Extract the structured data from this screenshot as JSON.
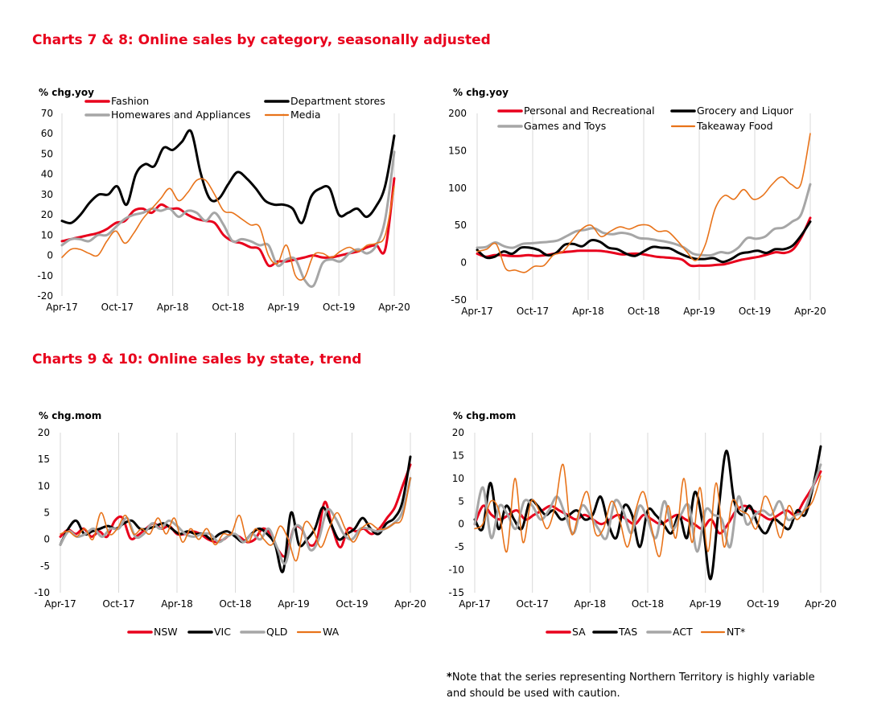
{
  "titles": {
    "top": "Charts 7 & 8: Online sales by category, seasonally adjusted",
    "bottom": "Charts 9 & 10: Online sales by state, trend"
  },
  "footnote": {
    "star": "*",
    "text": "Note that the series representing Northern Territory is highly variable and should be used with caution."
  },
  "chart_data": [
    {
      "id": "chart7",
      "type": "line",
      "ylabel": "% chg.yoy",
      "ylim": [
        -20,
        70
      ],
      "ystep": 10,
      "x_ticks": [
        "Apr-17",
        "Oct-17",
        "Apr-18",
        "Oct-18",
        "Apr-19",
        "Oct-19",
        "Apr-20"
      ],
      "x_range": [
        "Apr-17",
        "Apr-20"
      ],
      "grid": "vertical",
      "legend": "top",
      "series": [
        {
          "name": "Fashion",
          "color": "#e8001c",
          "width": 3,
          "values": [
            7,
            8,
            9,
            10,
            11,
            13,
            16,
            17,
            22,
            23,
            21,
            25,
            23,
            23,
            20,
            18,
            17,
            16,
            10,
            7,
            6,
            4,
            3,
            -5,
            -3,
            -3,
            -2,
            -1,
            0,
            -1,
            -1,
            0,
            1,
            2,
            4,
            5,
            3,
            38
          ]
        },
        {
          "name": "Department stores",
          "color": "#000000",
          "width": 3,
          "values": [
            17,
            16,
            20,
            26,
            30,
            30,
            34,
            25,
            40,
            45,
            44,
            53,
            52,
            56,
            61,
            41,
            28,
            28,
            35,
            41,
            38,
            33,
            27,
            25,
            25,
            23,
            16,
            29,
            33,
            33,
            20,
            21,
            23,
            19,
            24,
            34,
            59
          ]
        },
        {
          "name": "Homewares and Appliances",
          "color": "#a6a6a6",
          "width": 3,
          "values": [
            5,
            8,
            8,
            7,
            10,
            10,
            14,
            18,
            20,
            21,
            23,
            22,
            23,
            19,
            22,
            21,
            17,
            21,
            15,
            7,
            8,
            7,
            5,
            5,
            -5,
            -2,
            -2,
            -12,
            -15,
            -4,
            -2,
            -3,
            1,
            3,
            1,
            5,
            18,
            51
          ]
        },
        {
          "name": "Media",
          "color": "#e8731a",
          "width": 1.6,
          "values": [
            -1,
            3,
            3,
            1,
            0,
            7,
            12,
            6,
            11,
            18,
            23,
            28,
            33,
            27,
            31,
            37,
            37,
            30,
            22,
            21,
            18,
            15,
            14,
            0,
            -4,
            5,
            -10,
            -11,
            0,
            1,
            -1,
            2,
            4,
            2,
            5,
            6,
            10,
            34
          ]
        }
      ]
    },
    {
      "id": "chart8",
      "type": "line",
      "ylabel": "% chg.yoy",
      "ylim": [
        -50,
        200
      ],
      "ystep": 50,
      "x_ticks": [
        "Apr-17",
        "Oct-17",
        "Apr-18",
        "Oct-18",
        "Apr-19",
        "Oct-19",
        "Apr-20"
      ],
      "x_range": [
        "Apr-17",
        "Apr-20"
      ],
      "grid": "vertical",
      "legend": "top",
      "series": [
        {
          "name": "Personal and Recreational",
          "color": "#e8001c",
          "width": 3,
          "values": [
            12,
            8,
            10,
            10,
            9,
            9,
            10,
            9,
            10,
            12,
            14,
            15,
            16,
            16,
            16,
            15,
            13,
            11,
            12,
            12,
            10,
            8,
            7,
            6,
            4,
            -4,
            -4,
            -4,
            -3,
            -2,
            1,
            4,
            6,
            8,
            11,
            14,
            13,
            18,
            35,
            60
          ]
        },
        {
          "name": "Grocery and Liquor",
          "color": "#000000",
          "width": 3,
          "values": [
            17,
            7,
            8,
            15,
            12,
            20,
            20,
            17,
            10,
            13,
            24,
            25,
            22,
            30,
            28,
            20,
            18,
            12,
            9,
            15,
            21,
            20,
            19,
            13,
            8,
            5,
            5,
            6,
            1,
            5,
            12,
            14,
            16,
            13,
            18,
            18,
            23,
            37,
            55
          ]
        },
        {
          "name": "Games and Toys",
          "color": "#a6a6a6",
          "width": 3,
          "values": [
            20,
            21,
            27,
            22,
            20,
            25,
            26,
            27,
            28,
            30,
            36,
            42,
            44,
            46,
            40,
            38,
            40,
            38,
            33,
            32,
            30,
            28,
            25,
            20,
            12,
            10,
            10,
            14,
            13,
            20,
            33,
            32,
            35,
            45,
            47,
            55,
            65,
            105
          ]
        },
        {
          "name": "Takeaway Food",
          "color": "#e8731a",
          "width": 1.6,
          "values": [
            15,
            18,
            25,
            -8,
            -10,
            -13,
            -5,
            -4,
            10,
            15,
            30,
            45,
            50,
            35,
            42,
            48,
            45,
            50,
            50,
            42,
            42,
            30,
            15,
            3,
            25,
            72,
            90,
            85,
            98,
            85,
            90,
            105,
            115,
            105,
            105,
            173
          ]
        }
      ]
    },
    {
      "id": "chart9",
      "type": "line",
      "ylabel": "% chg.mom",
      "ylim": [
        -10,
        20
      ],
      "ystep": 5,
      "x_ticks": [
        "Apr-17",
        "Oct-17",
        "Apr-18",
        "Oct-18",
        "Apr-19",
        "Oct-19",
        "Apr-20"
      ],
      "x_range": [
        "Apr-17",
        "Apr-20"
      ],
      "grid": "vertical",
      "legend": "bottom",
      "series": [
        {
          "name": "NSW",
          "color": "#e8001c",
          "width": 3,
          "values": [
            0.5,
            1.8,
            1,
            2,
            0.5,
            1.5,
            0.5,
            3.5,
            4,
            0.2,
            0.8,
            2,
            3,
            2,
            2.5,
            1,
            1,
            1.5,
            1,
            0,
            -0.5,
            0,
            1,
            0.5,
            -0.5,
            0,
            2,
            1,
            -2,
            -3,
            2,
            2,
            -1,
            0,
            7,
            2,
            -1.5,
            2,
            1.5,
            2,
            1,
            2,
            4,
            6,
            10,
            14
          ]
        },
        {
          "name": "VIC",
          "color": "#000000",
          "width": 3,
          "values": [
            -1,
            2,
            3.5,
            1,
            1.5,
            2,
            2.5,
            2,
            3,
            3.5,
            2,
            2,
            2.5,
            3,
            2,
            1,
            1.5,
            1,
            1,
            0,
            1,
            1.5,
            0.5,
            -0.5,
            1,
            2,
            1,
            -1,
            -6,
            5,
            -1,
            0,
            2,
            6,
            3,
            0,
            1,
            2,
            4,
            2,
            1,
            3,
            4,
            7,
            15.5
          ]
        },
        {
          "name": "QLD",
          "color": "#a6a6a6",
          "width": 3,
          "values": [
            -1,
            1.5,
            0.5,
            1,
            2,
            0.5,
            2,
            2,
            4,
            0.5,
            1,
            3,
            2,
            3.5,
            2.5,
            1,
            0.5,
            1,
            1,
            -0.5,
            0.5,
            1,
            -0.5,
            1,
            0,
            2,
            -1.5,
            -4.5,
            2,
            2,
            -2,
            0,
            5.5,
            4,
            1,
            0,
            2,
            2,
            1.5,
            2,
            3,
            5,
            11.5
          ]
        },
        {
          "name": "WA",
          "color": "#e8731a",
          "width": 1.6,
          "values": [
            1,
            1.5,
            0.5,
            2,
            0,
            5,
            1,
            2,
            4.5,
            1,
            2,
            1,
            4,
            1,
            4,
            -0.5,
            2,
            0,
            2,
            -1,
            1,
            1,
            4.5,
            -0.5,
            2,
            0,
            -1,
            2.5,
            0,
            -4,
            3,
            2,
            -1.5,
            2,
            5,
            2,
            -0.5,
            2,
            3,
            2,
            2,
            3,
            4,
            11.5
          ]
        }
      ]
    },
    {
      "id": "chart10",
      "type": "line",
      "ylabel": "% chg.mom",
      "ylim": [
        -15,
        20
      ],
      "ystep": 5,
      "x_ticks": [
        "Apr-17",
        "Oct-17",
        "Apr-18",
        "Oct-18",
        "Apr-19",
        "Oct-19",
        "Apr-20"
      ],
      "x_range": [
        "Apr-17",
        "Apr-20"
      ],
      "grid": "vertical",
      "legend": "bottom",
      "series": [
        {
          "name": "SA",
          "color": "#e8001c",
          "width": 3,
          "values": [
            0,
            4,
            2,
            1,
            2,
            3,
            1,
            2,
            3,
            4,
            3,
            2,
            1,
            2,
            1,
            0,
            1,
            2,
            1,
            0,
            2,
            1,
            0,
            1,
            2,
            1,
            0,
            -1,
            1,
            -2,
            0,
            3,
            4,
            3,
            2,
            1,
            2,
            3,
            2,
            5,
            8,
            11.5
          ]
        },
        {
          "name": "TAS",
          "color": "#000000",
          "width": 3,
          "values": [
            1,
            -1,
            9,
            -1,
            4,
            1,
            -1,
            5,
            4,
            2,
            3,
            1,
            2,
            3,
            1,
            2,
            6,
            0,
            -3,
            4,
            2,
            -5,
            3,
            2,
            0,
            -2,
            2,
            -3,
            7,
            0,
            -12,
            3,
            16,
            5,
            2,
            4,
            0,
            -2,
            1,
            0,
            -1,
            3,
            2,
            8,
            17
          ]
        },
        {
          "name": "ACT",
          "color": "#a6a6a6",
          "width": 3,
          "values": [
            0,
            8,
            -3,
            4,
            2,
            -1,
            5,
            4,
            1,
            3,
            6,
            2,
            -2,
            4,
            2,
            -1,
            -3,
            5,
            3,
            -2,
            4,
            1,
            -3,
            5,
            -1,
            2,
            4,
            -6,
            3,
            2,
            1,
            -5,
            6,
            0,
            2,
            3,
            2,
            5,
            1,
            2,
            3,
            8,
            13
          ]
        },
        {
          "name": "NT*",
          "color": "#e8731a",
          "width": 1.6,
          "values": [
            -1,
            0,
            5,
            3,
            -6,
            10,
            -4,
            5,
            3,
            -1,
            4,
            13,
            -2,
            3,
            7,
            -2,
            -1,
            5,
            1,
            -5,
            3,
            7,
            -1,
            -7,
            4,
            -3,
            10,
            -4,
            8,
            -6,
            9,
            -5,
            5,
            3,
            2,
            -1,
            6,
            3,
            -3,
            4,
            1,
            3,
            5,
            10.5
          ]
        }
      ]
    }
  ]
}
